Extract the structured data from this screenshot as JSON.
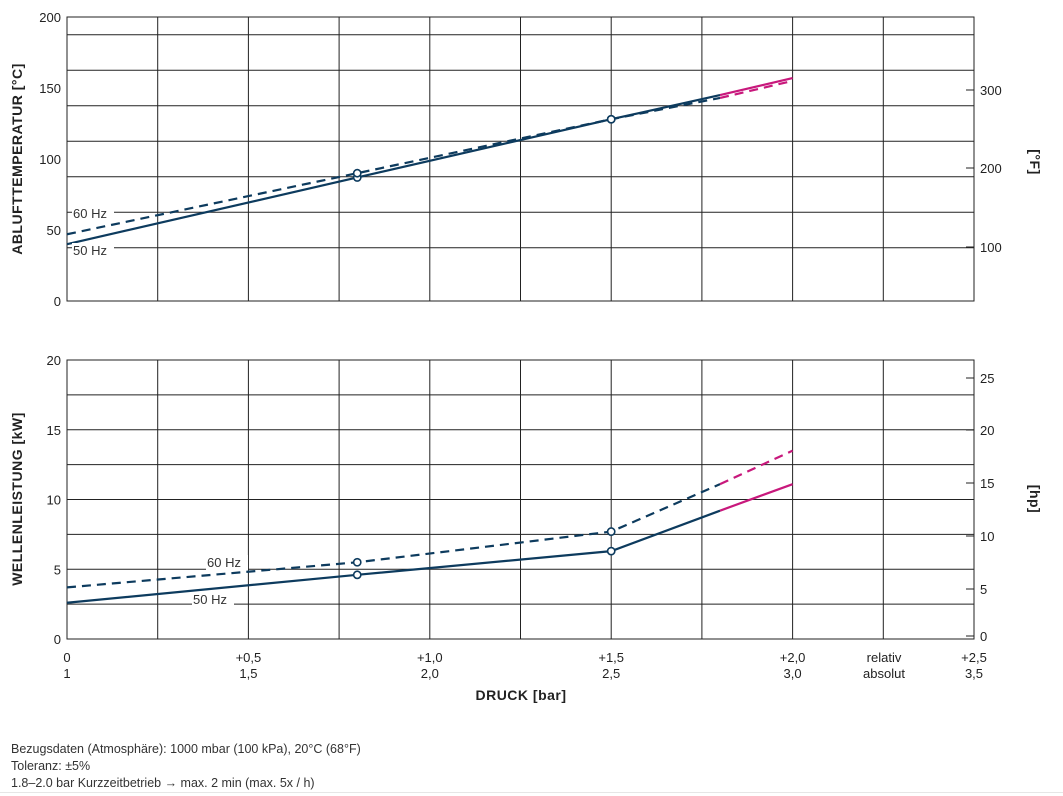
{
  "colors": {
    "series_main": "#0d3b5e",
    "series_short_term": "#c8187c",
    "grid": "#222222"
  },
  "chart_data": [
    {
      "type": "line",
      "ylabel": "ABLUFTTEMPERATUR [°C]",
      "ylabel_right": "[°F]",
      "ylim": [
        0,
        200
      ],
      "yticks": [
        "0",
        "50",
        "100",
        "150",
        "200"
      ],
      "yticks_right": [
        "100",
        "200",
        "300"
      ],
      "series": [
        {
          "name": "50 Hz",
          "dash": false,
          "label": "50 Hz",
          "x": [
            0,
            0.8,
            1.5,
            1.8,
            2.0
          ],
          "y": [
            40,
            87,
            128,
            145,
            157
          ],
          "markers": [
            0.8,
            1.5
          ],
          "short_term_from": 1.8
        },
        {
          "name": "60 Hz",
          "dash": true,
          "label": "60 Hz",
          "x": [
            0,
            0.8,
            1.5,
            1.8,
            2.0
          ],
          "y": [
            47,
            90,
            128,
            143,
            155
          ],
          "markers": [
            0.8,
            1.5
          ],
          "short_term_from": 1.8
        }
      ]
    },
    {
      "type": "line",
      "ylabel": "WELLENLEISTUNG [kW]",
      "ylabel_right": "[hp]",
      "ylim": [
        0,
        20
      ],
      "yticks": [
        "0",
        "5",
        "10",
        "15",
        "20"
      ],
      "yticks_right": [
        "0",
        "5",
        "10",
        "15",
        "20",
        "25"
      ],
      "series": [
        {
          "name": "50 Hz",
          "dash": false,
          "label": "50 Hz",
          "x": [
            0,
            0.8,
            1.5,
            1.8,
            2.0
          ],
          "y": [
            2.6,
            4.6,
            6.3,
            9.2,
            11.1
          ],
          "markers": [
            0.8,
            1.5
          ],
          "short_term_from": 1.8
        },
        {
          "name": "60 Hz",
          "dash": true,
          "label": "60 Hz",
          "x": [
            0,
            0.8,
            1.5,
            1.8,
            2.0
          ],
          "y": [
            3.7,
            5.5,
            7.7,
            11.1,
            13.5
          ],
          "markers": [
            0.8,
            1.5
          ],
          "short_term_from": 1.8
        }
      ]
    }
  ],
  "x_axis": {
    "xlim": [
      0,
      2.5
    ],
    "title": "DRUCK [bar]",
    "ticks_relative": [
      "0",
      "+0,5",
      "+1,0",
      "+1,5",
      "+2,0",
      "+2,5"
    ],
    "ticks_absolute": [
      "1",
      "1,5",
      "2,0",
      "2,5",
      "3,0",
      "3,5"
    ],
    "label_relative": "relativ",
    "label_absolute": "absolut"
  },
  "notes": [
    "Bezugsdaten (Atmosphäre): 1000 mbar (100 kPa), 20°C (68°F)",
    "Toleranz: ±5%",
    "1.8–2.0 bar Kurzzeitbetrieb → max. 2 min (max. 5x / h)"
  ]
}
